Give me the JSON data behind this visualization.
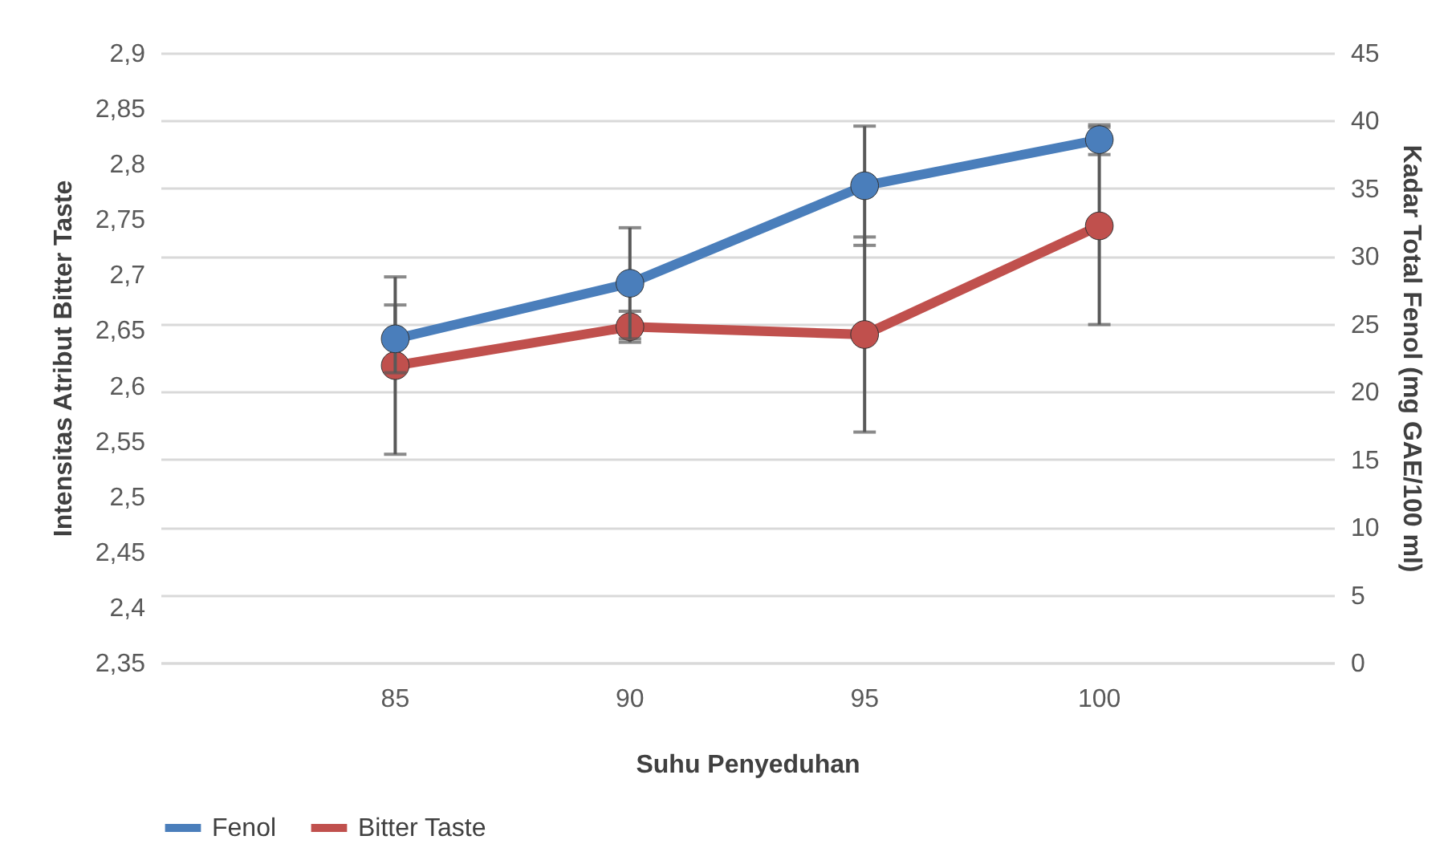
{
  "chart_data": {
    "type": "line",
    "xlabel": "Suhu Penyeduhan",
    "ylabel": "Intensitas Atribut Bitter Taste",
    "y2label": "Kadar Total Fenol (mg GAE/100 ml)",
    "categories": [
      "85",
      "90",
      "95",
      "100"
    ],
    "series": [
      {
        "name": "Fenol",
        "color": "#4a7ebb",
        "axis": "y2",
        "values": [
          23.9,
          28.0,
          35.2,
          38.6
        ],
        "errors": [
          2.5,
          4.1,
          4.4,
          1.1
        ]
      },
      {
        "name": "Bitter Taste",
        "color": "#c0504d",
        "values": [
          2.618,
          2.653,
          2.646,
          2.744
        ],
        "errors": [
          0.08,
          0.014,
          0.088,
          0.089
        ]
      }
    ],
    "ylim": [
      2.35,
      2.9
    ],
    "yticks": [
      {
        "value": 2.35,
        "label": "2,35"
      },
      {
        "value": 2.4,
        "label": "2,4"
      },
      {
        "value": 2.45,
        "label": "2,45"
      },
      {
        "value": 2.5,
        "label": "2,5"
      },
      {
        "value": 2.55,
        "label": "2,55"
      },
      {
        "value": 2.6,
        "label": "2,6"
      },
      {
        "value": 2.65,
        "label": "2,65"
      },
      {
        "value": 2.7,
        "label": "2,7"
      },
      {
        "value": 2.75,
        "label": "2,75"
      },
      {
        "value": 2.8,
        "label": "2,8"
      },
      {
        "value": 2.85,
        "label": "2,85"
      },
      {
        "value": 2.9,
        "label": "2,9"
      }
    ],
    "y2lim": [
      0,
      45
    ],
    "y2ticks": [
      0,
      5,
      10,
      15,
      20,
      25,
      30,
      35,
      40,
      45
    ],
    "grid": true,
    "legend": "bottom",
    "marker": "circle",
    "line_style": "solid"
  }
}
